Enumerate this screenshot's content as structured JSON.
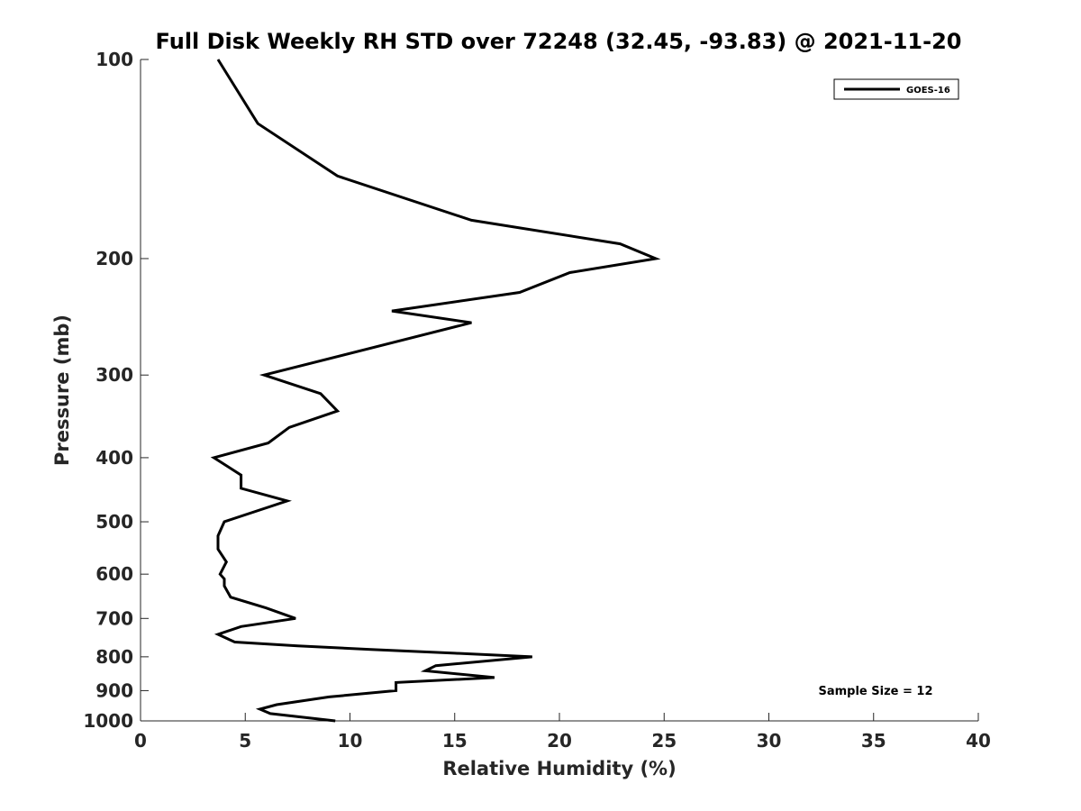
{
  "chart_data": {
    "type": "line",
    "title": "Full Disk Weekly RH STD over 72248 (32.45, -93.83) @ 2021-11-20",
    "xlabel": "Relative Humidity (%)",
    "ylabel": "Pressure (mb)",
    "xlim": [
      0,
      40
    ],
    "ylim": [
      100,
      1000
    ],
    "y_scale": "log",
    "y_reversed": true,
    "grid": false,
    "x_ticks": [
      0,
      5,
      10,
      15,
      20,
      25,
      30,
      35,
      40
    ],
    "y_ticks": [
      100,
      200,
      300,
      400,
      500,
      600,
      700,
      800,
      900,
      1000
    ],
    "legend": {
      "position": "top-right",
      "entries": [
        "GOES-16"
      ]
    },
    "annotations": [
      "Sample Size = 12"
    ],
    "series": [
      {
        "name": "GOES-16",
        "color": "#000000",
        "points": [
          [
            3.7,
            100
          ],
          [
            5.6,
            125
          ],
          [
            9.4,
            150
          ],
          [
            15.8,
            175
          ],
          [
            22.9,
            190
          ],
          [
            24.6,
            200
          ],
          [
            20.5,
            210
          ],
          [
            18.1,
            225
          ],
          [
            12.0,
            240
          ],
          [
            15.8,
            250
          ],
          [
            5.9,
            300
          ],
          [
            8.6,
            320
          ],
          [
            9.4,
            340
          ],
          [
            7.1,
            360
          ],
          [
            6.1,
            380
          ],
          [
            3.5,
            400
          ],
          [
            4.8,
            425
          ],
          [
            4.8,
            445
          ],
          [
            7.0,
            465
          ],
          [
            4.0,
            500
          ],
          [
            3.7,
            525
          ],
          [
            3.7,
            550
          ],
          [
            4.1,
            575
          ],
          [
            3.8,
            600
          ],
          [
            4.0,
            610
          ],
          [
            4.0,
            625
          ],
          [
            4.3,
            650
          ],
          [
            6.0,
            675
          ],
          [
            7.4,
            700
          ],
          [
            4.8,
            720
          ],
          [
            3.7,
            740
          ],
          [
            4.5,
            760
          ],
          [
            7.5,
            770
          ],
          [
            11.0,
            780
          ],
          [
            15.0,
            790
          ],
          [
            18.7,
            800
          ],
          [
            14.1,
            825
          ],
          [
            13.6,
            840
          ],
          [
            16.9,
            860
          ],
          [
            12.2,
            875
          ],
          [
            12.2,
            900
          ],
          [
            9.0,
            920
          ],
          [
            6.5,
            945
          ],
          [
            5.7,
            960
          ],
          [
            6.2,
            975
          ],
          [
            9.3,
            1000
          ]
        ]
      }
    ]
  }
}
